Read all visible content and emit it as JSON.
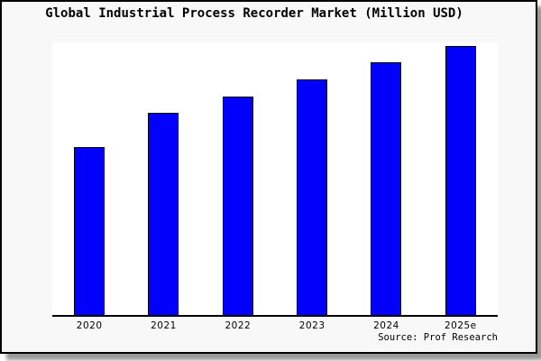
{
  "chart_data": {
    "type": "bar",
    "title": "Global Industrial Process Recorder Market (Million USD)",
    "categories": [
      "2020",
      "2021",
      "2022",
      "2023",
      "2024",
      "2025e"
    ],
    "values": [
      100,
      120,
      130,
      140,
      150,
      160
    ],
    "values_note": "No y-axis or data labels shown in image; values are relative bar heights estimated from pixels (2020 normalized to 100)",
    "xlabel": "",
    "ylabel": "",
    "ylim": [
      0,
      162
    ],
    "grid": false,
    "legend": false,
    "source": "Source: Prof Research",
    "colors": {
      "bar_fill": "#0000fb",
      "bar_edge": "#000000",
      "plot_background": "#ffffff",
      "frame_background": "#f8f8f8",
      "frame_border": "#000000",
      "text": "#000000"
    }
  }
}
